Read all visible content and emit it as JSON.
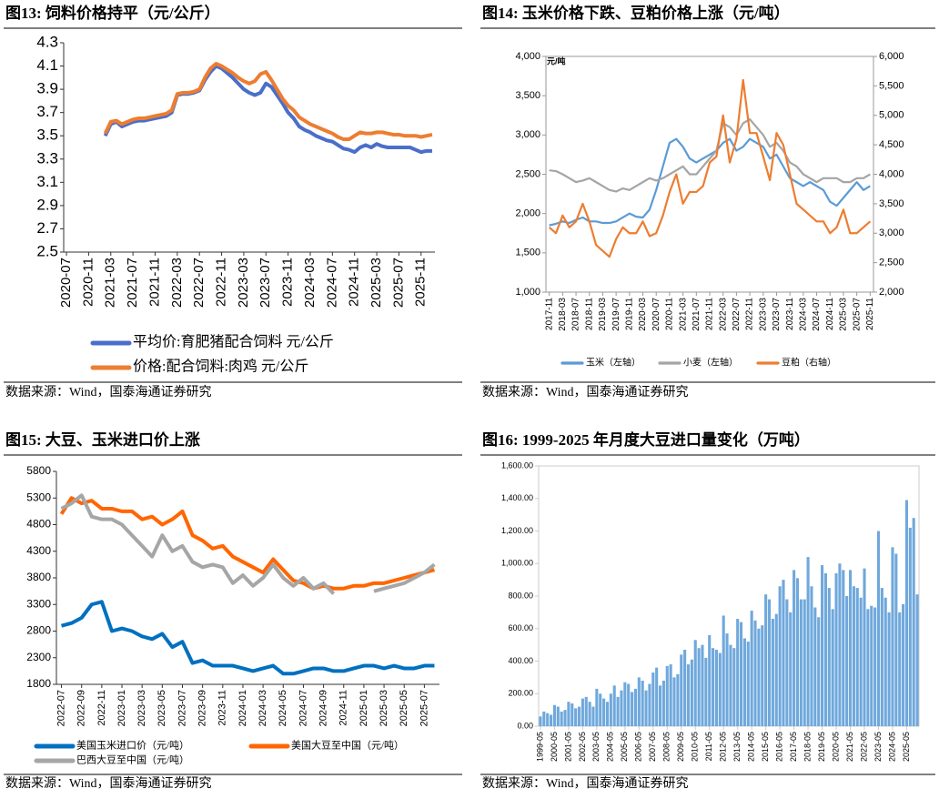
{
  "chart_data": [
    {
      "type": "line",
      "title": "图13:  饲料价格持平（元/公斤）",
      "source": "数据来源：Wind，国泰海通证券研究",
      "categories": [
        "2020-07",
        null,
        null,
        null,
        "2020-11",
        null,
        null,
        null,
        "2021-03",
        null,
        null,
        null,
        "2021-07",
        null,
        null,
        null,
        "2021-11",
        null,
        null,
        null,
        "2022-03",
        null,
        null,
        null,
        "2022-07",
        null,
        null,
        null,
        "2022-11",
        null,
        null,
        null,
        "2023-03",
        null,
        null,
        null,
        "2023-07",
        null,
        null,
        null,
        "2023-11",
        null,
        null,
        null,
        "2024-03",
        null,
        null,
        null,
        "2024-07",
        null,
        null,
        null,
        "2024-11",
        null,
        null,
        null,
        "2025-03",
        null,
        null,
        null,
        "2025-07",
        null,
        null,
        null,
        "2025-11",
        null,
        null
      ],
      "series": [
        {
          "name": "平均价:育肥猪配合饲料 元/公斤",
          "color": "#4a6fca",
          "values": [
            null,
            null,
            null,
            null,
            null,
            null,
            null,
            3.5,
            3.6,
            3.62,
            3.58,
            3.6,
            3.62,
            3.63,
            3.63,
            3.64,
            3.65,
            3.66,
            3.67,
            3.7,
            3.85,
            3.86,
            3.86,
            3.87,
            3.89,
            3.98,
            4.05,
            4.1,
            4.08,
            4.04,
            4.0,
            3.95,
            3.9,
            3.87,
            3.85,
            3.87,
            3.95,
            3.92,
            3.85,
            3.78,
            3.7,
            3.65,
            3.58,
            3.55,
            3.53,
            3.5,
            3.48,
            3.46,
            3.45,
            3.42,
            3.39,
            3.38,
            3.36,
            3.4,
            3.42,
            3.4,
            3.43,
            3.41,
            3.4,
            3.4,
            3.4,
            3.4,
            3.4,
            3.38,
            3.36,
            3.37,
            3.37
          ]
        },
        {
          "name": "价格:配合饲料:肉鸡 元/公斤",
          "color": "#ed7d31",
          "values": [
            null,
            null,
            null,
            null,
            null,
            null,
            null,
            3.52,
            3.62,
            3.63,
            3.6,
            3.62,
            3.64,
            3.65,
            3.65,
            3.66,
            3.67,
            3.68,
            3.69,
            3.72,
            3.86,
            3.87,
            3.87,
            3.88,
            3.9,
            4.0,
            4.08,
            4.12,
            4.1,
            4.07,
            4.04,
            4.0,
            3.97,
            3.95,
            3.97,
            4.03,
            4.05,
            3.98,
            3.9,
            3.82,
            3.76,
            3.72,
            3.66,
            3.63,
            3.6,
            3.58,
            3.56,
            3.54,
            3.52,
            3.49,
            3.47,
            3.47,
            3.5,
            3.53,
            3.52,
            3.52,
            3.53,
            3.53,
            3.52,
            3.51,
            3.51,
            3.5,
            3.5,
            3.5,
            3.49,
            3.5,
            3.51
          ]
        }
      ],
      "ylim": [
        2.5,
        4.3
      ],
      "yticks": [
        2.5,
        2.7,
        2.9,
        3.1,
        3.3,
        3.5,
        3.7,
        3.9,
        4.1,
        4.3
      ]
    },
    {
      "type": "line",
      "title": "图14:  玉米价格下跌、豆粕价格上涨（元/吨）",
      "source": "数据来源：Wind，国泰海通证券研究",
      "annotation": "元/吨",
      "categories": [
        "2017-11",
        null,
        "2018-03",
        null,
        "2018-07",
        null,
        "2018-11",
        null,
        "2019-03",
        null,
        "2019-07",
        null,
        "2019-11",
        null,
        "2020-03",
        null,
        "2020-07",
        null,
        "2020-11",
        null,
        "2021-03",
        null,
        "2021-07",
        null,
        "2021-11",
        null,
        "2022-03",
        null,
        "2022-07",
        null,
        "2022-11",
        null,
        "2023-03",
        null,
        "2023-07",
        null,
        "2023-11",
        null,
        "2024-03",
        null,
        "2024-07",
        null,
        "2024-11",
        null,
        "2025-03",
        null,
        "2025-07",
        null,
        "2025-11"
      ],
      "series": [
        {
          "name": "玉米（左轴）",
          "color": "#5b9bd5",
          "values": [
            1850,
            1870,
            1900,
            1880,
            1920,
            1950,
            1900,
            1900,
            1880,
            1880,
            1900,
            1950,
            2000,
            1960,
            1950,
            2050,
            2300,
            2600,
            2900,
            2950,
            2850,
            2700,
            2650,
            2700,
            2750,
            2800,
            2900,
            2950,
            2800,
            2850,
            2950,
            2900,
            2850,
            2700,
            2750,
            2600,
            2450,
            2400,
            2350,
            2400,
            2350,
            2300,
            2150,
            2100,
            2200,
            2300,
            2400,
            2300,
            2350
          ]
        },
        {
          "name": "小麦（左轴）",
          "color": "#a5a5a5",
          "values": [
            2550,
            2540,
            2500,
            2450,
            2400,
            2420,
            2450,
            2400,
            2350,
            2300,
            2280,
            2320,
            2300,
            2350,
            2400,
            2450,
            2420,
            2450,
            2500,
            2550,
            2600,
            2500,
            2500,
            2600,
            2700,
            2800,
            3150,
            3100,
            3000,
            3150,
            3200,
            3100,
            3000,
            2850,
            2900,
            2800,
            2650,
            2600,
            2500,
            2450,
            2400,
            2450,
            2450,
            2450,
            2400,
            2400,
            2450,
            2450,
            2500
          ]
        },
        {
          "name": "豆粕（右轴）",
          "color": "#ed7d31",
          "axis": "y2",
          "values": [
            3100,
            3000,
            3300,
            3100,
            3200,
            3500,
            3200,
            2800,
            2700,
            2600,
            2900,
            3100,
            3000,
            3000,
            3200,
            2950,
            3000,
            3300,
            3700,
            4000,
            3500,
            3700,
            3700,
            3800,
            4200,
            4300,
            5000,
            4200,
            4600,
            5600,
            4700,
            4700,
            4300,
            3900,
            4700,
            4500,
            4000,
            3500,
            3400,
            3300,
            3200,
            3200,
            3000,
            3100,
            3400,
            3000,
            3000,
            3100,
            3200
          ]
        }
      ],
      "ylim": [
        1000,
        4000
      ],
      "yticks": [
        {
          "value": 1000,
          "label": "1,000"
        },
        {
          "value": 1500,
          "label": "1,500"
        },
        {
          "value": 2000,
          "label": "2,000"
        },
        {
          "value": 2500,
          "label": "2,500"
        },
        {
          "value": 3000,
          "label": "3,000"
        },
        {
          "value": 3500,
          "label": "3,500"
        },
        {
          "value": 4000,
          "label": "4,000"
        }
      ],
      "y2lim": [
        2000,
        6000
      ],
      "y2ticks": [
        {
          "value": 2000,
          "label": "2,000"
        },
        {
          "value": 2500,
          "label": "2,500"
        },
        {
          "value": 3000,
          "label": "3,000"
        },
        {
          "value": 3500,
          "label": "3,500"
        },
        {
          "value": 4000,
          "label": "4,000"
        },
        {
          "value": 4500,
          "label": "4,500"
        },
        {
          "value": 5000,
          "label": "5,000"
        },
        {
          "value": 5500,
          "label": "5,500"
        },
        {
          "value": 6000,
          "label": "6,000"
        }
      ]
    },
    {
      "type": "line",
      "title": "图15:  大豆、玉米进口价上涨",
      "source": "数据来源：Wind，国泰海通证券研究",
      "categories": [
        "2022-07",
        null,
        "2022-09",
        null,
        "2022-11",
        null,
        "2023-01",
        null,
        "2023-03",
        null,
        "2023-05",
        null,
        "2023-07",
        null,
        "2023-09",
        null,
        "2023-11",
        null,
        "2024-01",
        null,
        "2024-03",
        null,
        "2024-05",
        null,
        "2024-07",
        null,
        "2024-09",
        null,
        "2024-11",
        null,
        "2025-01",
        null,
        "2025-03",
        null,
        "2025-05",
        null,
        "2025-07",
        null
      ],
      "series": [
        {
          "name": "美国玉米进口价（元/吨）",
          "color": "#0070c0",
          "values": [
            2900,
            2950,
            3050,
            3300,
            3350,
            2800,
            2850,
            2800,
            2700,
            2650,
            2750,
            2500,
            2600,
            2200,
            2250,
            2150,
            2150,
            2150,
            2100,
            2050,
            2100,
            2150,
            2000,
            2000,
            2050,
            2100,
            2100,
            2050,
            2050,
            2100,
            2150,
            2150,
            2100,
            2150,
            2100,
            2100,
            2150,
            2150
          ]
        },
        {
          "name": "美国大豆至中国（元/吨）",
          "color": "#ff6600",
          "values": [
            5000,
            5300,
            5200,
            5250,
            5100,
            5100,
            5050,
            5050,
            4900,
            4950,
            4800,
            4900,
            5050,
            4600,
            4500,
            4350,
            4400,
            4200,
            4100,
            4000,
            3900,
            4150,
            3950,
            3750,
            3700,
            3600,
            3650,
            3600,
            3600,
            3650,
            3650,
            3700,
            3700,
            3750,
            3800,
            3850,
            3900,
            3950
          ]
        },
        {
          "name": "巴西大豆至中国（元/吨）",
          "color": "#a6a6a6",
          "values": [
            5100,
            5200,
            5350,
            4950,
            4900,
            4900,
            4800,
            4600,
            4400,
            4200,
            4600,
            4300,
            4400,
            4100,
            4000,
            4050,
            4000,
            3700,
            3850,
            3650,
            3800,
            4050,
            3800,
            3650,
            3800,
            3600,
            3700,
            3500,
            null,
            null,
            null,
            3550,
            3600,
            3650,
            3700,
            3800,
            3900,
            4050
          ]
        }
      ],
      "ylim": [
        1800,
        5800
      ],
      "yticks": [
        1800,
        2300,
        2800,
        3300,
        3800,
        4300,
        4800,
        5300,
        5800
      ]
    },
    {
      "type": "bar",
      "title": "图16:  1999-2025 年月度大豆进口量变化（万吨）",
      "source": "数据来源：Wind，国泰海通证券研究",
      "color": "#6fa8dc",
      "categories": [
        "1999-05",
        null,
        null,
        null,
        "2000-05",
        null,
        null,
        null,
        "2001-05",
        null,
        null,
        null,
        "2002-05",
        null,
        null,
        null,
        "2003-05",
        null,
        null,
        null,
        "2004-05",
        null,
        null,
        null,
        "2005-05",
        null,
        null,
        null,
        "2006-05",
        null,
        null,
        null,
        "2007-05",
        null,
        null,
        null,
        "2008-05",
        null,
        null,
        null,
        "2009-05",
        null,
        null,
        null,
        "2010-05",
        null,
        null,
        null,
        "2011-05",
        null,
        null,
        null,
        "2012-05",
        null,
        null,
        null,
        "2013-05",
        null,
        null,
        null,
        "2014-05",
        null,
        null,
        null,
        "2015-05",
        null,
        null,
        null,
        "2016-05",
        null,
        null,
        null,
        "2017-05",
        null,
        null,
        null,
        "2018-05",
        null,
        null,
        null,
        "2019-05",
        null,
        null,
        null,
        "2020-05",
        null,
        null,
        null,
        "2021-05",
        null,
        null,
        null,
        "2022-05",
        null,
        null,
        null,
        "2023-05",
        null,
        null,
        null,
        "2024-05",
        null,
        null,
        null,
        "2025-05",
        null,
        null,
        null
      ],
      "values": [
        60,
        90,
        80,
        70,
        130,
        120,
        90,
        100,
        150,
        140,
        110,
        120,
        170,
        180,
        150,
        120,
        230,
        200,
        170,
        150,
        200,
        250,
        180,
        220,
        270,
        260,
        210,
        230,
        300,
        280,
        220,
        260,
        330,
        360,
        250,
        280,
        370,
        380,
        300,
        320,
        440,
        470,
        380,
        410,
        530,
        480,
        500,
        420,
        560,
        480,
        470,
        450,
        680,
        570,
        500,
        480,
        660,
        640,
        540,
        520,
        710,
        650,
        600,
        620,
        810,
        780,
        660,
        690,
        860,
        900,
        780,
        700,
        960,
        910,
        780,
        780,
        1040,
        860,
        730,
        670,
        990,
        940,
        850,
        720,
        940,
        1000,
        960,
        800,
        960,
        860,
        850,
        790,
        970,
        720,
        740,
        730,
        1200,
        850,
        790,
        700,
        1100,
        1060,
        700,
        750,
        1390,
        1220,
        1280,
        810
      ],
      "ylim": [
        0,
        1600
      ],
      "yticks": [
        {
          "value": 0,
          "label": "0.00"
        },
        {
          "value": 200,
          "label": "200.00"
        },
        {
          "value": 400,
          "label": "400.00"
        },
        {
          "value": 600,
          "label": "600.00"
        },
        {
          "value": 800,
          "label": "800.00"
        },
        {
          "value": 1000,
          "label": "1,000.00"
        },
        {
          "value": 1200,
          "label": "1,200.00"
        },
        {
          "value": 1400,
          "label": "1,400.00"
        },
        {
          "value": 1600,
          "label": "1,600.00"
        }
      ]
    }
  ]
}
